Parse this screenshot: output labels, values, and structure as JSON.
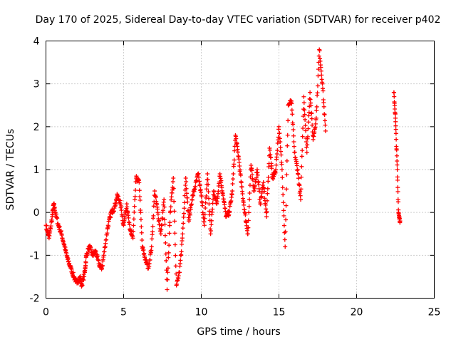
{
  "chart_data": {
    "type": "scatter",
    "title": "Day 170 of 2025, Sidereal Day-to-day VTEC variation (SDTVAR) for receiver p402",
    "xlabel": "GPS time / hours",
    "ylabel": "SDTVAR / TECUs",
    "xlim": [
      0,
      25
    ],
    "ylim": [
      -2,
      4
    ],
    "xticks": [
      "0",
      "5",
      "10",
      "15",
      "20",
      "25"
    ],
    "yticks": [
      "-2",
      "-1",
      "0",
      "1",
      "2",
      "3",
      "4"
    ],
    "grid": true,
    "marker": "+",
    "color": "#ff0000",
    "series": [
      {
        "name": "SDTVAR",
        "approx_trace": [
          [
            0.0,
            -0.3
          ],
          [
            0.2,
            -0.6
          ],
          [
            0.4,
            -0.1
          ],
          [
            0.5,
            0.2
          ],
          [
            0.6,
            0.0
          ],
          [
            0.8,
            -0.3
          ],
          [
            1.0,
            -0.5
          ],
          [
            1.2,
            -0.8
          ],
          [
            1.4,
            -1.1
          ],
          [
            1.6,
            -1.3
          ],
          [
            1.8,
            -1.5
          ],
          [
            2.0,
            -1.65
          ],
          [
            2.2,
            -1.5
          ],
          [
            2.3,
            -1.7
          ],
          [
            2.5,
            -1.4
          ],
          [
            2.6,
            -1.0
          ],
          [
            2.8,
            -0.8
          ],
          [
            3.0,
            -1.0
          ],
          [
            3.2,
            -0.9
          ],
          [
            3.4,
            -1.2
          ],
          [
            3.6,
            -1.3
          ],
          [
            3.8,
            -0.8
          ],
          [
            4.0,
            -0.3
          ],
          [
            4.2,
            0.0
          ],
          [
            4.4,
            0.1
          ],
          [
            4.6,
            0.4
          ],
          [
            4.8,
            0.2
          ],
          [
            5.0,
            -0.3
          ],
          [
            5.2,
            0.2
          ],
          [
            5.4,
            -0.4
          ],
          [
            5.6,
            -0.6
          ],
          [
            5.8,
            0.8
          ],
          [
            6.0,
            0.7
          ],
          [
            6.2,
            -0.8
          ],
          [
            6.4,
            -1.1
          ],
          [
            6.6,
            -1.3
          ],
          [
            6.8,
            -0.8
          ],
          [
            7.0,
            0.5
          ],
          [
            7.2,
            0.0
          ],
          [
            7.4,
            -0.5
          ],
          [
            7.6,
            0.3
          ],
          [
            7.8,
            -1.8
          ],
          [
            8.0,
            0.0
          ],
          [
            8.2,
            0.8
          ],
          [
            8.4,
            -1.7
          ],
          [
            8.6,
            -1.4
          ],
          [
            8.8,
            -0.5
          ],
          [
            9.0,
            0.8
          ],
          [
            9.2,
            -0.2
          ],
          [
            9.4,
            0.3
          ],
          [
            9.6,
            0.6
          ],
          [
            9.8,
            0.9
          ],
          [
            10.0,
            0.4
          ],
          [
            10.2,
            -0.3
          ],
          [
            10.4,
            0.9
          ],
          [
            10.6,
            -0.5
          ],
          [
            10.8,
            0.5
          ],
          [
            11.0,
            0.2
          ],
          [
            11.2,
            0.9
          ],
          [
            11.4,
            0.4
          ],
          [
            11.6,
            -0.1
          ],
          [
            11.8,
            0.0
          ],
          [
            12.0,
            0.5
          ],
          [
            12.2,
            1.8
          ],
          [
            12.4,
            1.3
          ],
          [
            12.6,
            0.6
          ],
          [
            12.8,
            0.0
          ],
          [
            13.0,
            -0.5
          ],
          [
            13.2,
            1.1
          ],
          [
            13.4,
            0.5
          ],
          [
            13.6,
            1.0
          ],
          [
            13.8,
            0.2
          ],
          [
            14.0,
            0.7
          ],
          [
            14.2,
            -0.1
          ],
          [
            14.4,
            1.5
          ],
          [
            14.6,
            0.8
          ],
          [
            14.8,
            1.0
          ],
          [
            15.0,
            2.0
          ],
          [
            15.2,
            1.0
          ],
          [
            15.4,
            -0.8
          ],
          [
            15.6,
            2.5
          ],
          [
            15.8,
            2.6
          ],
          [
            16.0,
            1.4
          ],
          [
            16.2,
            1.0
          ],
          [
            16.4,
            0.3
          ],
          [
            16.6,
            2.7
          ],
          [
            16.8,
            1.4
          ],
          [
            17.0,
            2.8
          ],
          [
            17.2,
            1.7
          ],
          [
            17.4,
            2.2
          ],
          [
            17.6,
            3.8
          ],
          [
            17.8,
            3.0
          ],
          [
            18.0,
            1.9
          ],
          [
            22.4,
            2.8
          ],
          [
            22.5,
            2.2
          ],
          [
            22.6,
            1.2
          ],
          [
            22.7,
            0.0
          ],
          [
            22.8,
            -0.2
          ]
        ]
      }
    ]
  }
}
